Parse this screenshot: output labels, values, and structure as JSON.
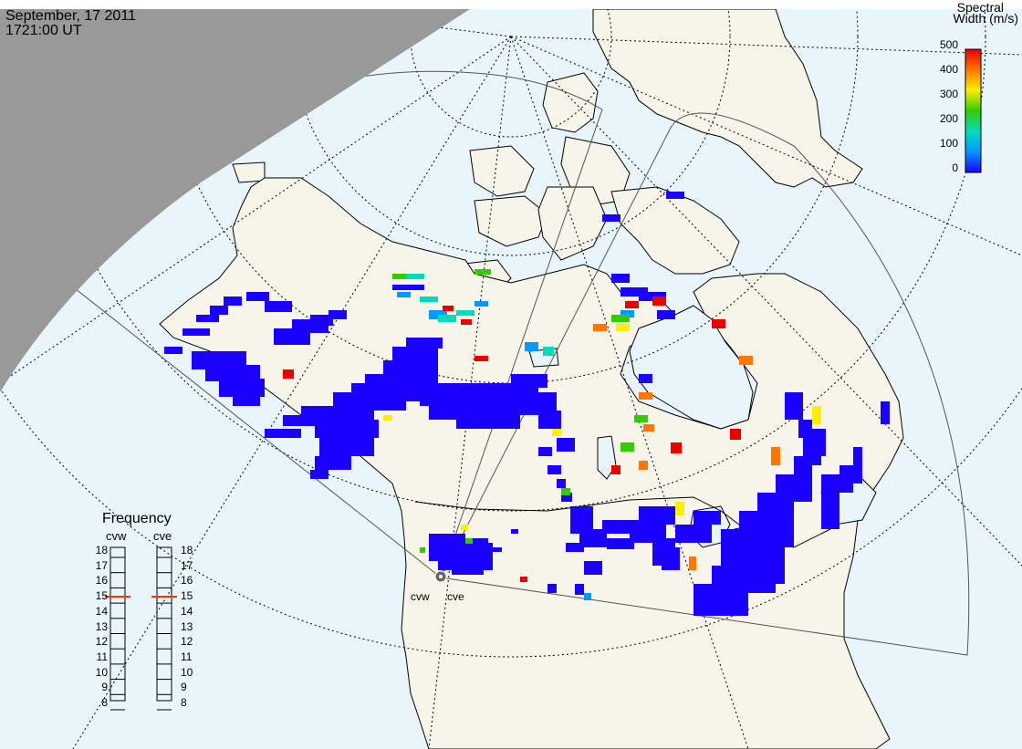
{
  "header": {
    "date": "September, 17 2011",
    "time": "1721:00 UT"
  },
  "colorbar": {
    "title_line1": "Spectral",
    "title_line2": "Width (m/s)",
    "ticks": [
      "500",
      "400",
      "300",
      "200",
      "100",
      "0"
    ],
    "colors": [
      "#ee0000",
      "#ff7700",
      "#ffee00",
      "#33cc00",
      "#00ddbb",
      "#0099ff",
      "#1a00ff"
    ]
  },
  "frequency_panel": {
    "title": "Frequency",
    "radars": [
      "cvw",
      "cve"
    ],
    "ticks": [
      "18",
      "17",
      "16",
      "15",
      "14",
      "13",
      "12",
      "11",
      "10",
      "9",
      "8"
    ],
    "selected": {
      "cvw": 15,
      "cve": 15
    }
  },
  "map": {
    "ocean_color": "#e8f6fc",
    "land_color": "#f7f5ea",
    "night_color": "#999999",
    "radar_labels": [
      "cvw",
      "cve"
    ]
  }
}
